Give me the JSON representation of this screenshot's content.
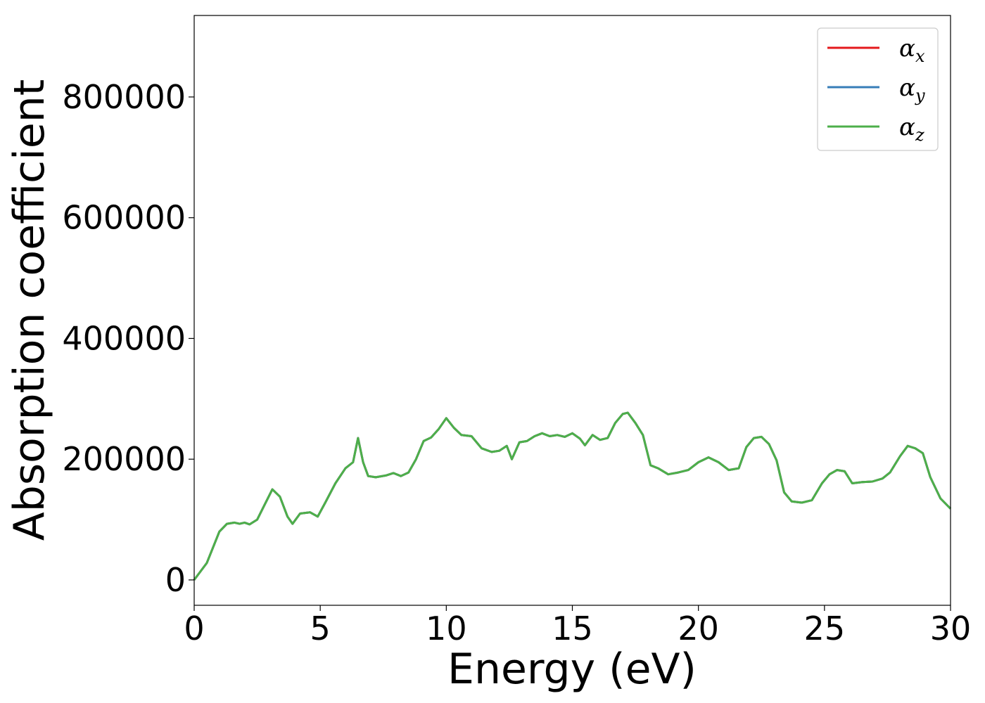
{
  "chart_data": {
    "type": "line",
    "title": "",
    "xlabel": "Energy (eV)",
    "ylabel": "Absorption coefficient",
    "xlim": [
      0,
      30
    ],
    "ylim": [
      -42000,
      935000
    ],
    "xticks": [
      0,
      5,
      10,
      15,
      20,
      25,
      30
    ],
    "xtick_labels": [
      "0",
      "5",
      "10",
      "15",
      "20",
      "25",
      "30"
    ],
    "yticks": [
      0,
      200000,
      400000,
      600000,
      800000
    ],
    "ytick_labels": [
      "0",
      "200000",
      "400000",
      "600000",
      "800000"
    ],
    "grid": false,
    "legend_position": "top-right",
    "series_colors": [
      "#e41a1c",
      "#377eb8",
      "#4daf4a"
    ],
    "series": [
      {
        "name": "αx",
        "x": [
          0,
          0.5,
          1,
          1.3,
          1.6,
          1.8,
          2,
          2.2,
          2.5,
          2.8,
          3.1,
          3.4,
          3.7,
          3.9,
          4.2,
          4.6,
          4.9,
          5.2,
          5.6,
          6,
          6.3,
          6.5,
          6.7,
          6.9,
          7.2,
          7.6,
          7.9,
          8.2,
          8.5,
          8.8,
          9.1,
          9.4,
          9.7,
          10,
          10.3,
          10.6,
          11,
          11.4,
          11.8,
          12.1,
          12.4,
          12.6,
          12.9,
          13.2,
          13.5,
          13.8,
          14.1,
          14.4,
          14.7,
          15,
          15.3,
          15.5,
          15.8,
          16.1,
          16.4,
          16.7,
          17,
          17.2,
          17.5,
          17.8,
          18.1,
          18.4,
          18.8,
          19.2,
          19.6,
          20,
          20.4,
          20.8,
          21.2,
          21.6,
          21.9,
          22.2,
          22.5,
          22.8,
          23.1,
          23.4,
          23.7,
          24.1,
          24.5,
          24.9,
          25.2,
          25.5,
          25.8,
          26.1,
          26.5,
          26.9,
          27.3,
          27.6,
          28,
          28.3,
          28.6,
          28.9,
          29.2,
          29.6,
          30
        ],
        "values": [
          0,
          28000,
          80000,
          93000,
          95000,
          93000,
          95000,
          92000,
          100000,
          125000,
          150000,
          138000,
          105000,
          93000,
          110000,
          112000,
          105000,
          128000,
          160000,
          185000,
          195000,
          235000,
          195000,
          172000,
          170000,
          173000,
          177000,
          172000,
          178000,
          200000,
          230000,
          236000,
          250000,
          268000,
          252000,
          240000,
          238000,
          218000,
          212000,
          214000,
          222000,
          200000,
          228000,
          230000,
          238000,
          243000,
          238000,
          240000,
          237000,
          243000,
          234000,
          223000,
          240000,
          232000,
          235000,
          260000,
          275000,
          277000,
          260000,
          240000,
          190000,
          185000,
          175000,
          178000,
          182000,
          195000,
          203000,
          195000,
          182000,
          185000,
          220000,
          235000,
          237000,
          225000,
          198000,
          145000,
          130000,
          128000,
          132000,
          160000,
          175000,
          182000,
          180000,
          160000,
          162000,
          163000,
          168000,
          178000,
          205000,
          222000,
          218000,
          210000,
          170000,
          135000,
          118000
        ]
      },
      {
        "name": "αy",
        "x": [
          0,
          0.5,
          1,
          1.3,
          1.6,
          1.8,
          2,
          2.2,
          2.5,
          2.8,
          3.1,
          3.4,
          3.7,
          3.9,
          4.2,
          4.6,
          4.9,
          5.2,
          5.6,
          6,
          6.3,
          6.5,
          6.7,
          6.9,
          7.2,
          7.6,
          7.9,
          8.2,
          8.5,
          8.8,
          9.1,
          9.4,
          9.7,
          10,
          10.3,
          10.6,
          11,
          11.4,
          11.8,
          12.1,
          12.4,
          12.6,
          12.9,
          13.2,
          13.5,
          13.8,
          14.1,
          14.4,
          14.7,
          15,
          15.3,
          15.5,
          15.8,
          16.1,
          16.4,
          16.7,
          17,
          17.2,
          17.5,
          17.8,
          18.1,
          18.4,
          18.8,
          19.2,
          19.6,
          20,
          20.4,
          20.8,
          21.2,
          21.6,
          21.9,
          22.2,
          22.5,
          22.8,
          23.1,
          23.4,
          23.7,
          24.1,
          24.5,
          24.9,
          25.2,
          25.5,
          25.8,
          26.1,
          26.5,
          26.9,
          27.3,
          27.6,
          28,
          28.3,
          28.6,
          28.9,
          29.2,
          29.6,
          30
        ],
        "values": [
          0,
          28000,
          80000,
          93000,
          95000,
          93000,
          95000,
          92000,
          100000,
          125000,
          150000,
          138000,
          105000,
          93000,
          110000,
          112000,
          105000,
          128000,
          160000,
          185000,
          195000,
          235000,
          195000,
          172000,
          170000,
          173000,
          177000,
          172000,
          178000,
          200000,
          230000,
          236000,
          250000,
          268000,
          252000,
          240000,
          238000,
          218000,
          212000,
          214000,
          222000,
          200000,
          228000,
          230000,
          238000,
          243000,
          238000,
          240000,
          237000,
          243000,
          234000,
          223000,
          240000,
          232000,
          235000,
          260000,
          275000,
          277000,
          260000,
          240000,
          190000,
          185000,
          175000,
          178000,
          182000,
          195000,
          203000,
          195000,
          182000,
          185000,
          220000,
          235000,
          237000,
          225000,
          198000,
          145000,
          130000,
          128000,
          132000,
          160000,
          175000,
          182000,
          180000,
          160000,
          162000,
          163000,
          168000,
          178000,
          205000,
          222000,
          218000,
          210000,
          170000,
          135000,
          118000
        ]
      },
      {
        "name": "αz",
        "x": [
          0,
          0.5,
          1,
          1.3,
          1.6,
          1.8,
          2,
          2.2,
          2.5,
          2.8,
          3.1,
          3.4,
          3.7,
          3.9,
          4.2,
          4.6,
          4.9,
          5.2,
          5.6,
          6,
          6.3,
          6.5,
          6.7,
          6.9,
          7.2,
          7.6,
          7.9,
          8.2,
          8.5,
          8.8,
          9.1,
          9.4,
          9.7,
          10,
          10.3,
          10.6,
          11,
          11.4,
          11.8,
          12.1,
          12.4,
          12.6,
          12.9,
          13.2,
          13.5,
          13.8,
          14.1,
          14.4,
          14.7,
          15,
          15.3,
          15.5,
          15.8,
          16.1,
          16.4,
          16.7,
          17,
          17.2,
          17.5,
          17.8,
          18.1,
          18.4,
          18.8,
          19.2,
          19.6,
          20,
          20.4,
          20.8,
          21.2,
          21.6,
          21.9,
          22.2,
          22.5,
          22.8,
          23.1,
          23.4,
          23.7,
          24.1,
          24.5,
          24.9,
          25.2,
          25.5,
          25.8,
          26.1,
          26.5,
          26.9,
          27.3,
          27.6,
          28,
          28.3,
          28.6,
          28.9,
          29.2,
          29.6,
          30
        ],
        "values": [
          0,
          28000,
          80000,
          93000,
          95000,
          93000,
          95000,
          92000,
          100000,
          125000,
          150000,
          138000,
          105000,
          93000,
          110000,
          112000,
          105000,
          128000,
          160000,
          185000,
          195000,
          235000,
          195000,
          172000,
          170000,
          173000,
          177000,
          172000,
          178000,
          200000,
          230000,
          236000,
          250000,
          268000,
          252000,
          240000,
          238000,
          218000,
          212000,
          214000,
          222000,
          200000,
          228000,
          230000,
          238000,
          243000,
          238000,
          240000,
          237000,
          243000,
          234000,
          223000,
          240000,
          232000,
          235000,
          260000,
          275000,
          277000,
          260000,
          240000,
          190000,
          185000,
          175000,
          178000,
          182000,
          195000,
          203000,
          195000,
          182000,
          185000,
          220000,
          235000,
          237000,
          225000,
          198000,
          145000,
          130000,
          128000,
          132000,
          160000,
          175000,
          182000,
          180000,
          160000,
          162000,
          163000,
          168000,
          178000,
          205000,
          222000,
          218000,
          210000,
          170000,
          135000,
          118000
        ]
      }
    ]
  }
}
